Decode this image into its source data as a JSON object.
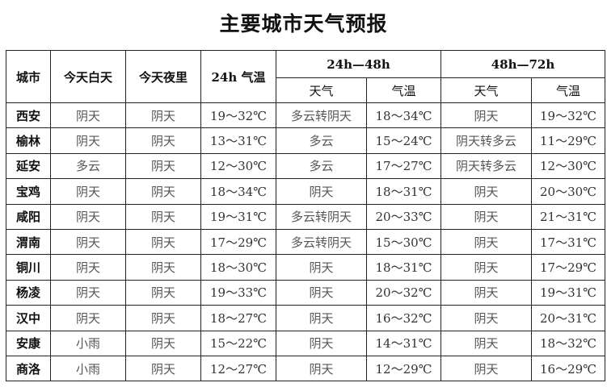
{
  "title": "主要城市天气预报",
  "header": {
    "city": "城市",
    "today_day": "今天白天",
    "today_night": "今天夜里",
    "temp_24h": "24h 气温",
    "group_24_48": "24h—48h",
    "group_48_72": "48h—72h",
    "weather": "天气",
    "temp": "气温"
  },
  "rows": [
    [
      "西安",
      "阴天",
      "阴天",
      "19～32℃",
      "多云转阴天",
      "18～34℃",
      "阴天",
      "19～32℃"
    ],
    [
      "榆林",
      "阴天",
      "阴天",
      "13～31℃",
      "多云",
      "15～24℃",
      "阴天转多云",
      "11～29℃"
    ],
    [
      "延安",
      "多云",
      "阴天",
      "12～30℃",
      "多云",
      "17～27℃",
      "阴天转多云",
      "12～30℃"
    ],
    [
      "宝鸡",
      "阴天",
      "阴天",
      "18～34℃",
      "阴天",
      "18～31℃",
      "阴天",
      "20～30℃"
    ],
    [
      "咸阳",
      "阴天",
      "阴天",
      "19～31℃",
      "多云转阴天",
      "20～33℃",
      "阴天",
      "21～31℃"
    ],
    [
      "渭南",
      "阴天",
      "阴天",
      "17～29℃",
      "多云转阴天",
      "15～30℃",
      "阴天",
      "17～31℃"
    ],
    [
      "铜川",
      "阴天",
      "阴天",
      "18～30℃",
      "阴天",
      "18～31℃",
      "阴天",
      "17～29℃"
    ],
    [
      "杨凌",
      "阴天",
      "阴天",
      "19～33℃",
      "阴天",
      "20～32℃",
      "阴天",
      "19～31℃"
    ],
    [
      "汉中",
      "阴天",
      "阴天",
      "18～27℃",
      "阴天",
      "16～32℃",
      "阴天",
      "20～31℃"
    ],
    [
      "安康",
      "小雨",
      "阴天",
      "15～22℃",
      "阴天",
      "14～31℃",
      "阴天",
      "18～32℃"
    ],
    [
      "商洛",
      "小雨",
      "阴天",
      "12～27℃",
      "阴天",
      "12～29℃",
      "阴天",
      "16～29℃"
    ]
  ]
}
